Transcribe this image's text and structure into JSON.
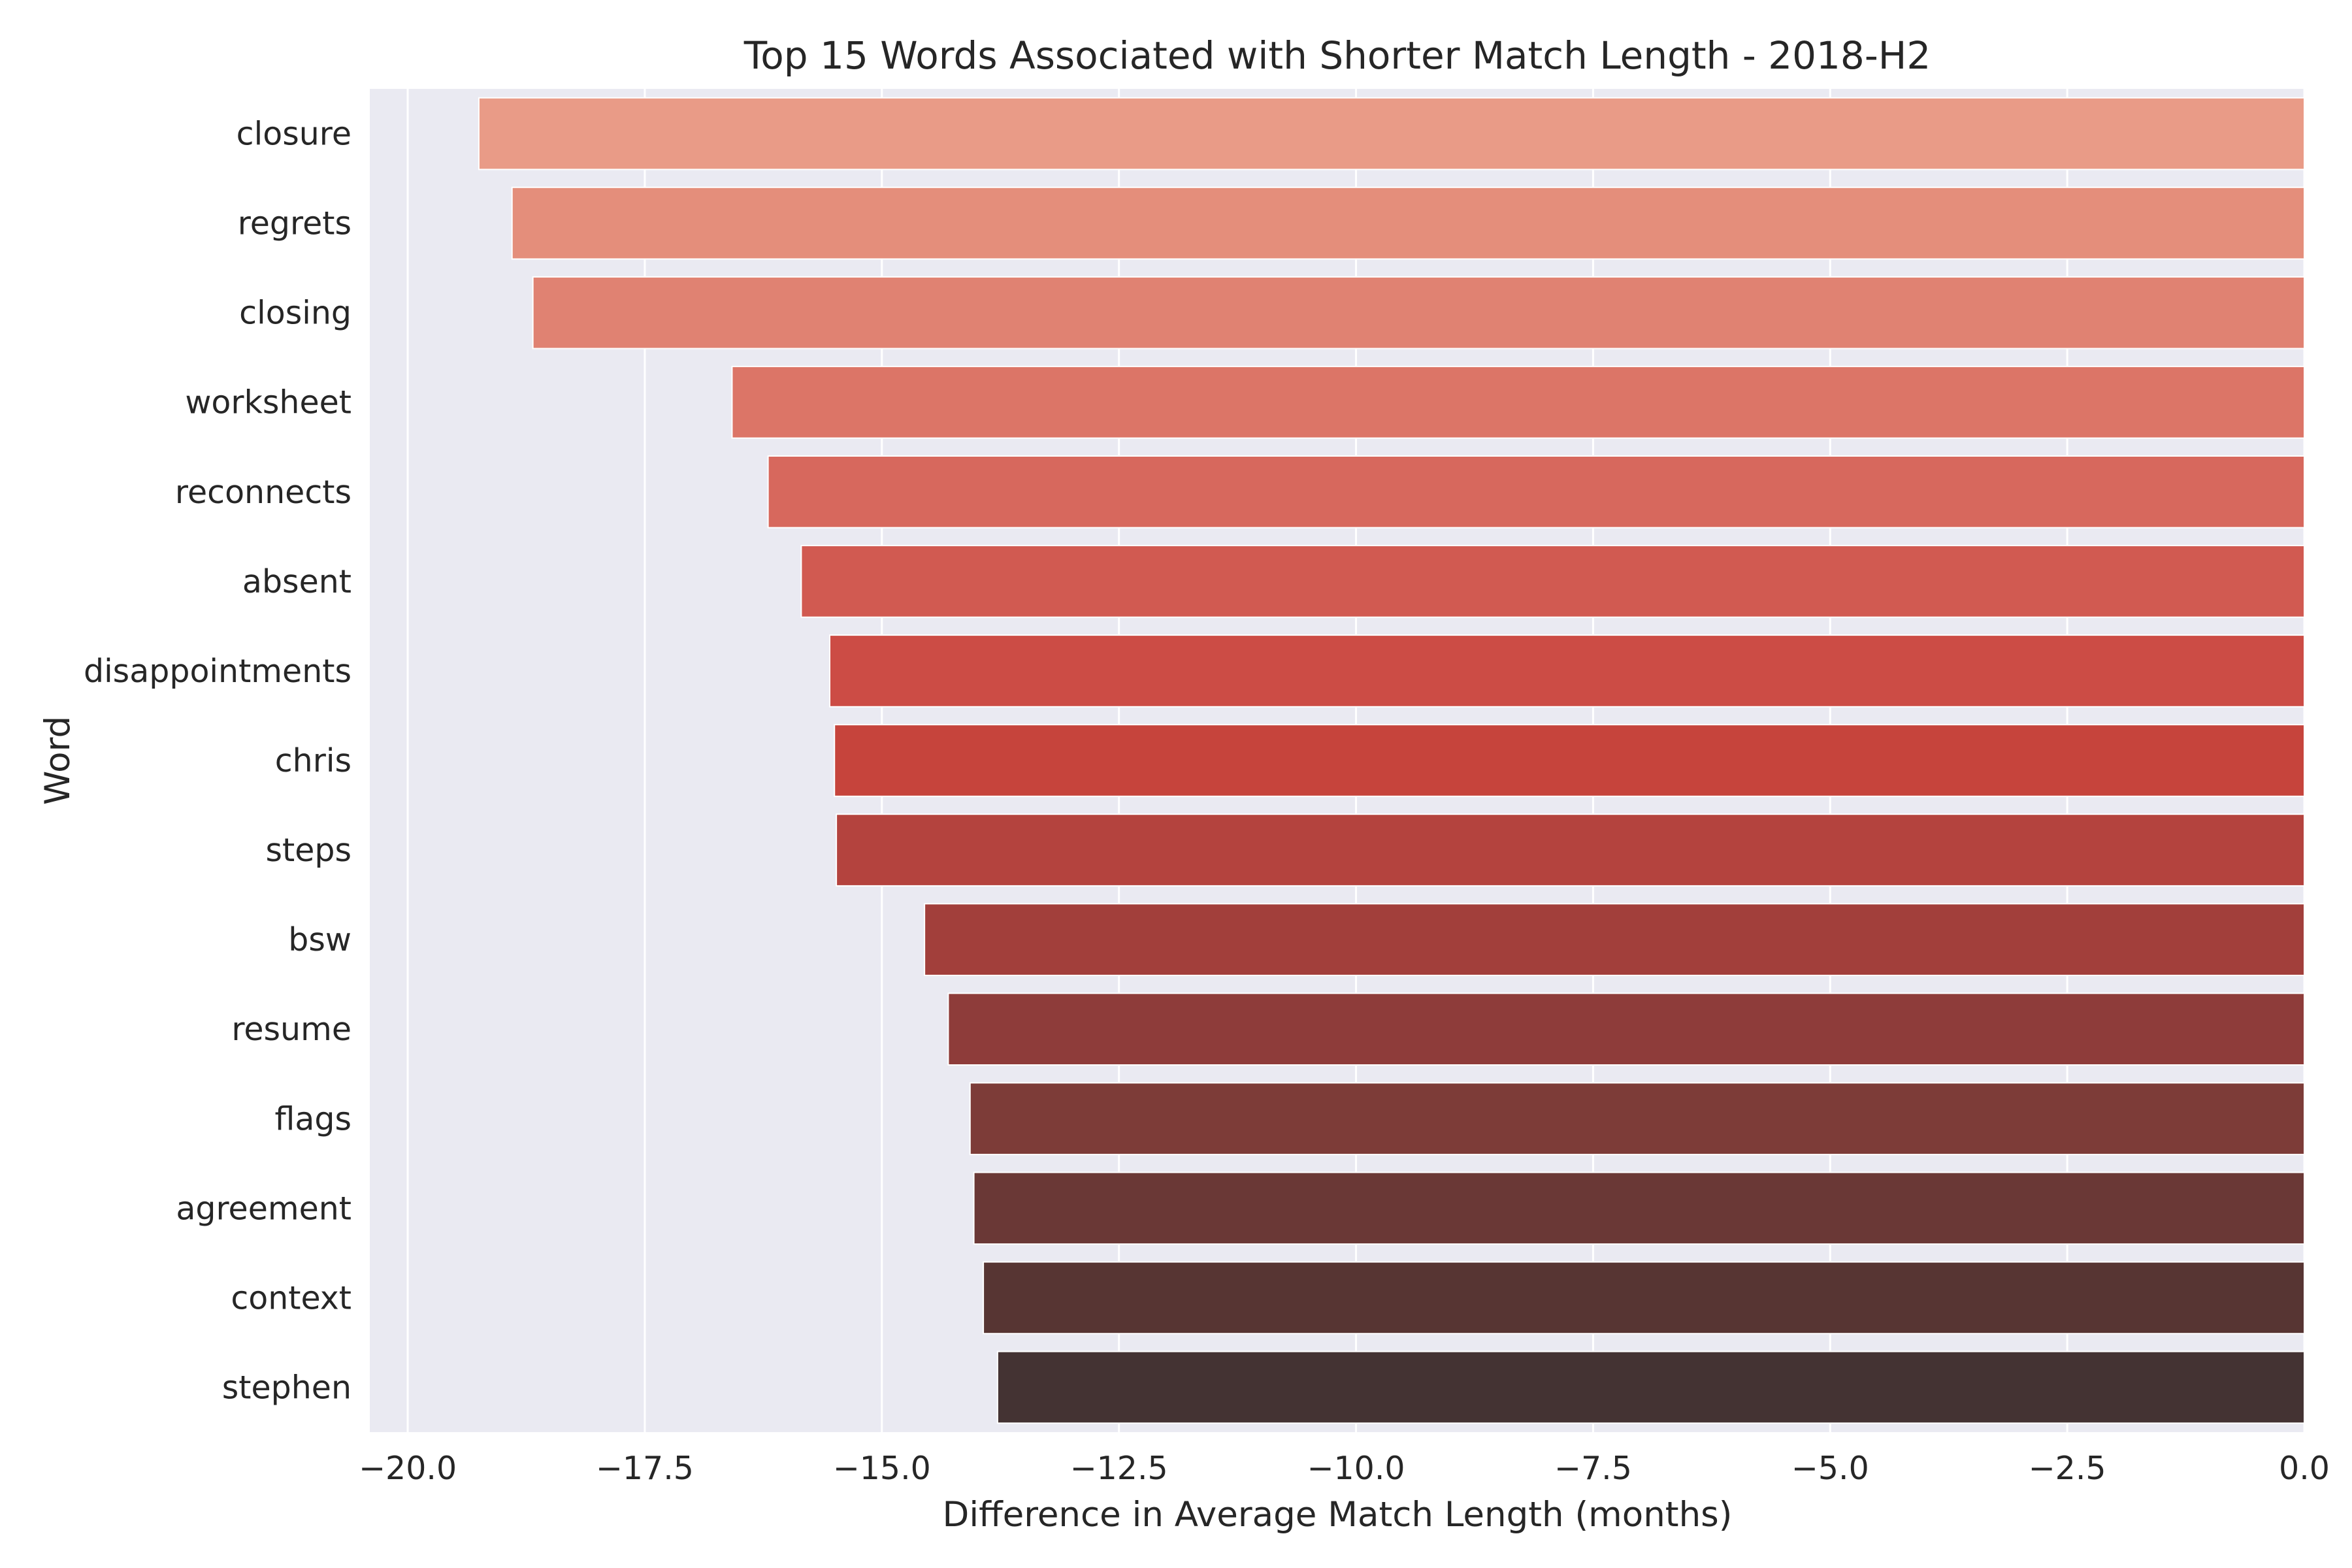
{
  "chart_data": {
    "type": "bar",
    "orientation": "horizontal",
    "title": "Top 15 Words Associated with Shorter Match Length - 2018-H2",
    "xlabel": "Difference in Average Match Length (months)",
    "ylabel": "Word",
    "xlim": [
      -20.4,
      0
    ],
    "xticks": [
      -20.0,
      -17.5,
      -15.0,
      -12.5,
      -10.0,
      -7.5,
      -5.0,
      -2.5,
      0.0
    ],
    "xtick_labels": [
      "−20.0",
      "−17.5",
      "−15.0",
      "−12.5",
      "−10.0",
      "−7.5",
      "−5.0",
      "−2.5",
      "0.0"
    ],
    "grid": true,
    "categories": [
      "closure",
      "regrets",
      "closing",
      "worksheet",
      "reconnects",
      "absent",
      "disappointments",
      "chris",
      "steps",
      "bsw",
      "resume",
      "flags",
      "agreement",
      "context",
      "stephen"
    ],
    "values": [
      -19.25,
      -18.9,
      -18.68,
      -16.58,
      -16.2,
      -15.85,
      -15.55,
      -15.5,
      -15.48,
      -14.55,
      -14.3,
      -14.07,
      -14.03,
      -13.93,
      -13.78
    ],
    "colors": [
      "#e99b87",
      "#e48e7b",
      "#e08272",
      "#dc7567",
      "#d7685d",
      "#d15a51",
      "#cc4c45",
      "#c6443c",
      "#b4433e",
      "#a23f3b",
      "#8e3c3a",
      "#7d3c38",
      "#6a3836",
      "#573533",
      "#443333"
    ]
  }
}
